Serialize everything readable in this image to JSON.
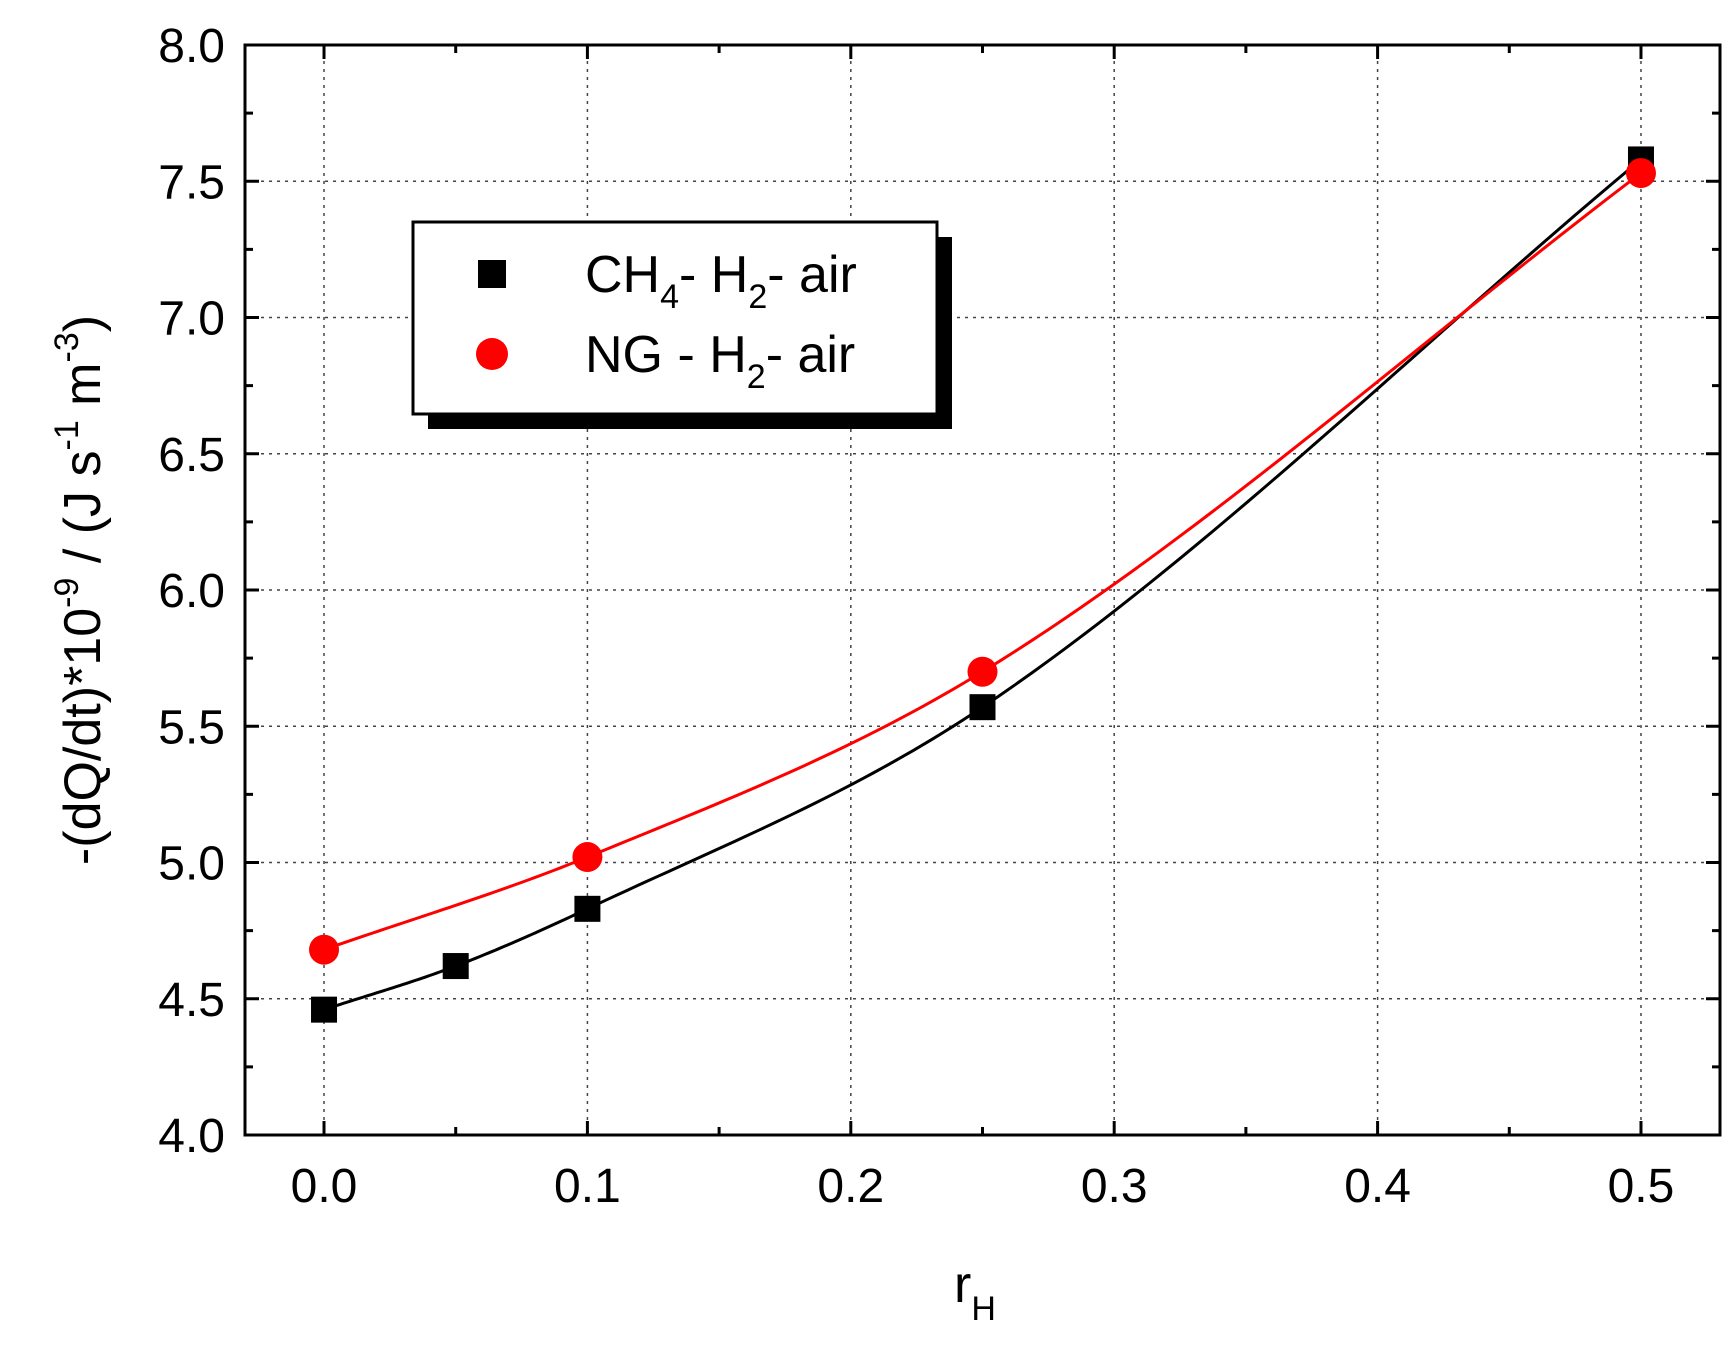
{
  "chart_data": {
    "type": "scatter",
    "xlabel": "r",
    "xlabel_sub": "H",
    "ylabel_parts": [
      "-(dQ/dt)*10",
      "-9",
      " / (J s",
      "-1",
      " m",
      "-3",
      ")"
    ],
    "xlim": [
      -0.03,
      0.53
    ],
    "ylim": [
      4.0,
      8.0
    ],
    "x_ticks": [
      0.0,
      0.1,
      0.2,
      0.3,
      0.4,
      0.5
    ],
    "x_tick_labels": [
      "0.0",
      "0.1",
      "0.2",
      "0.3",
      "0.4",
      "0.5"
    ],
    "y_ticks": [
      4.0,
      4.5,
      5.0,
      5.5,
      6.0,
      6.5,
      7.0,
      7.5,
      8.0
    ],
    "y_tick_labels": [
      "4.0",
      "4.5",
      "5.0",
      "5.5",
      "6.0",
      "6.5",
      "7.0",
      "7.5",
      "8.0"
    ],
    "grid": true,
    "legend_position": "top-left",
    "series": [
      {
        "name": "CH4- H2- air",
        "legend_parts": [
          [
            "CH",
            false
          ],
          [
            "4",
            true
          ],
          [
            "- H",
            false
          ],
          [
            "2",
            true
          ],
          [
            "- air",
            false
          ]
        ],
        "marker": "square",
        "color": "#000000",
        "x": [
          0.0,
          0.05,
          0.1,
          0.25,
          0.5
        ],
        "y": [
          4.46,
          4.62,
          4.83,
          5.57,
          7.58
        ]
      },
      {
        "name": "NG - H2- air",
        "legend_parts": [
          [
            "NG - H",
            false
          ],
          [
            "2",
            true
          ],
          [
            "- air",
            false
          ]
        ],
        "marker": "circle",
        "color": "#ff0000",
        "x": [
          0.0,
          0.1,
          0.25,
          0.5
        ],
        "y": [
          4.68,
          5.02,
          5.7,
          7.53
        ]
      }
    ]
  }
}
